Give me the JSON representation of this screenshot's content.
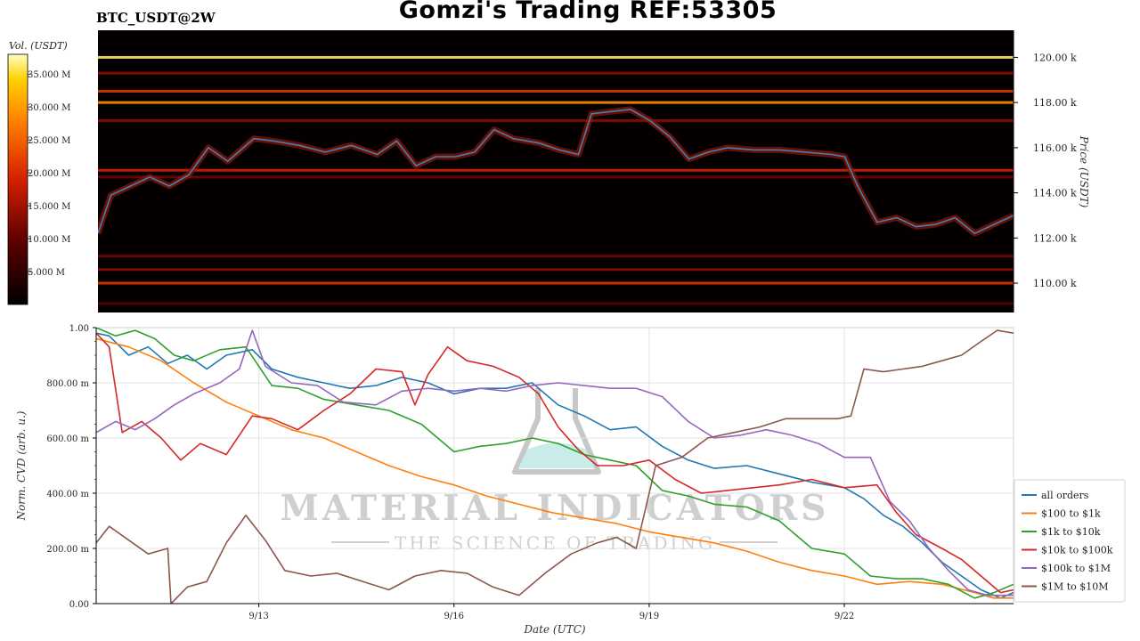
{
  "header": {
    "title": "Gomzi's Trading REF:53305",
    "symbol": "BTC_USDT@2W"
  },
  "colorbar": {
    "label": "Vol. (USDT)",
    "ticks": [
      "35.000 M",
      "30.000 M",
      "25.000 M",
      "20.000 M",
      "15.000 M",
      "10.000 M",
      "5.000 M"
    ],
    "tick_values": [
      35,
      30,
      25,
      20,
      15,
      10,
      5
    ],
    "range": [
      0,
      38
    ]
  },
  "watermark": {
    "brand": "MATERIAL INDICATORS",
    "tagline": "THE SCIENCE OF TRADING"
  },
  "chart_data": [
    {
      "type": "heatmap",
      "ylabel": "Price (USDT)",
      "ylim": [
        108700,
        121200
      ],
      "y_ticks": [
        110000,
        112000,
        114000,
        116000,
        118000,
        120000
      ],
      "y_tick_labels": [
        "110.00 k",
        "112.00 k",
        "114.00 k",
        "116.00 k",
        "118.00 k",
        "120.00 k"
      ],
      "x_range_days": [
        10.5,
        24.6
      ],
      "price_line_color": "#3f7fbf",
      "price_series": {
        "x": [
          10.5,
          10.7,
          11.0,
          11.3,
          11.6,
          11.9,
          12.2,
          12.5,
          12.9,
          13.2,
          13.6,
          14.0,
          14.4,
          14.8,
          15.1,
          15.4,
          15.7,
          16.0,
          16.3,
          16.6,
          16.9,
          17.3,
          17.6,
          17.9,
          18.1,
          18.4,
          18.7,
          19.0,
          19.3,
          19.6,
          19.9,
          20.2,
          20.6,
          21.0,
          21.4,
          21.8,
          22.0,
          22.2,
          22.5,
          22.8,
          23.1,
          23.4,
          23.7,
          24.0,
          24.3,
          24.6
        ],
        "y": [
          112200,
          113900,
          114300,
          114700,
          114300,
          114800,
          116000,
          115400,
          116400,
          116300,
          116100,
          115800,
          116100,
          115700,
          116300,
          115200,
          115600,
          115600,
          115800,
          116800,
          116400,
          116200,
          115900,
          115700,
          117500,
          117600,
          117700,
          117200,
          116500,
          115500,
          115800,
          116000,
          115900,
          115900,
          115800,
          115700,
          115600,
          114300,
          112700,
          112900,
          112500,
          112600,
          112900,
          112200,
          112600,
          113000
        ]
      },
      "liquidity_bands": [
        {
          "price": 120000,
          "intensity": 0.95
        },
        {
          "price": 119300,
          "intensity": 0.35
        },
        {
          "price": 118500,
          "intensity": 0.55
        },
        {
          "price": 118000,
          "intensity": 0.75
        },
        {
          "price": 117200,
          "intensity": 0.35
        },
        {
          "price": 115000,
          "intensity": 0.5
        },
        {
          "price": 114700,
          "intensity": 0.3
        },
        {
          "price": 111200,
          "intensity": 0.3
        },
        {
          "price": 110600,
          "intensity": 0.35
        },
        {
          "price": 110000,
          "intensity": 0.55
        },
        {
          "price": 109100,
          "intensity": 0.25
        }
      ]
    },
    {
      "type": "line",
      "xlabel": "Date (UTC)",
      "ylabel": "Norm. CVD (arb. u.)",
      "ylim": [
        0,
        1
      ],
      "xlim": [
        10.5,
        24.6
      ],
      "x_ticks": [
        13,
        16,
        19,
        22
      ],
      "x_tick_labels": [
        "9/13",
        "9/16",
        "9/19",
        "9/22"
      ],
      "y_ticks": [
        0,
        0.2,
        0.4,
        0.6,
        0.8,
        1.0
      ],
      "y_tick_labels": [
        "0.00",
        "200.00 m",
        "400.00 m",
        "600.00 m",
        "800.00 m",
        "1.00"
      ],
      "legend_position": "lower-right",
      "series": [
        {
          "name": "all orders",
          "color": "#1f77b4",
          "x": [
            10.5,
            10.7,
            11.0,
            11.3,
            11.6,
            11.9,
            12.2,
            12.5,
            12.9,
            13.2,
            13.6,
            14.0,
            14.4,
            14.8,
            15.2,
            15.6,
            16.0,
            16.4,
            16.8,
            17.2,
            17.6,
            18.0,
            18.4,
            18.8,
            19.2,
            19.6,
            20.0,
            20.5,
            21.0,
            21.5,
            22.0,
            22.3,
            22.6,
            22.9,
            23.2,
            23.5,
            23.8,
            24.1,
            24.4,
            24.6
          ],
          "y": [
            0.98,
            0.97,
            0.9,
            0.93,
            0.87,
            0.9,
            0.85,
            0.9,
            0.92,
            0.85,
            0.82,
            0.8,
            0.78,
            0.79,
            0.82,
            0.8,
            0.76,
            0.78,
            0.78,
            0.8,
            0.72,
            0.68,
            0.63,
            0.64,
            0.57,
            0.52,
            0.49,
            0.5,
            0.47,
            0.44,
            0.42,
            0.38,
            0.32,
            0.28,
            0.22,
            0.15,
            0.1,
            0.05,
            0.02,
            0.04
          ]
        },
        {
          "name": "$100 to $1k",
          "color": "#ff7f0e",
          "x": [
            10.5,
            11.0,
            11.5,
            12.0,
            12.5,
            13.0,
            13.5,
            14.0,
            14.5,
            15.0,
            15.5,
            16.0,
            16.5,
            17.0,
            17.5,
            18.0,
            18.5,
            19.0,
            19.5,
            20.0,
            20.5,
            21.0,
            21.5,
            22.0,
            22.5,
            23.0,
            23.5,
            24.0,
            24.3,
            24.6
          ],
          "y": [
            0.96,
            0.93,
            0.88,
            0.8,
            0.73,
            0.68,
            0.63,
            0.6,
            0.55,
            0.5,
            0.46,
            0.43,
            0.39,
            0.36,
            0.33,
            0.31,
            0.29,
            0.26,
            0.24,
            0.22,
            0.19,
            0.15,
            0.12,
            0.1,
            0.07,
            0.08,
            0.07,
            0.04,
            0.02,
            0.02
          ]
        },
        {
          "name": "$1k to $10k",
          "color": "#2ca02c",
          "x": [
            10.5,
            10.8,
            11.1,
            11.4,
            11.7,
            12.0,
            12.4,
            12.8,
            13.2,
            13.6,
            14.0,
            14.5,
            15.0,
            15.5,
            16.0,
            16.4,
            16.8,
            17.2,
            17.6,
            18.0,
            18.4,
            18.8,
            19.2,
            19.6,
            20.0,
            20.5,
            21.0,
            21.5,
            22.0,
            22.4,
            22.8,
            23.2,
            23.6,
            24.0,
            24.3,
            24.6
          ],
          "y": [
            1.0,
            0.97,
            0.99,
            0.96,
            0.9,
            0.88,
            0.92,
            0.93,
            0.79,
            0.78,
            0.74,
            0.72,
            0.7,
            0.65,
            0.55,
            0.57,
            0.58,
            0.6,
            0.58,
            0.54,
            0.52,
            0.5,
            0.41,
            0.39,
            0.36,
            0.35,
            0.3,
            0.2,
            0.18,
            0.1,
            0.09,
            0.09,
            0.07,
            0.02,
            0.04,
            0.07
          ]
        },
        {
          "name": "$10k to $100k",
          "color": "#d62728",
          "x": [
            10.5,
            10.7,
            10.9,
            11.2,
            11.5,
            11.8,
            12.1,
            12.5,
            12.9,
            13.2,
            13.6,
            14.0,
            14.4,
            14.8,
            15.2,
            15.4,
            15.6,
            15.9,
            16.2,
            16.6,
            17.0,
            17.3,
            17.6,
            17.9,
            18.2,
            18.6,
            19.0,
            19.4,
            19.8,
            20.2,
            20.6,
            21.0,
            21.5,
            22.0,
            22.5,
            22.8,
            23.1,
            23.5,
            23.8,
            24.1,
            24.4,
            24.6
          ],
          "y": [
            0.98,
            0.93,
            0.62,
            0.66,
            0.6,
            0.52,
            0.58,
            0.54,
            0.68,
            0.67,
            0.63,
            0.7,
            0.76,
            0.85,
            0.84,
            0.72,
            0.83,
            0.93,
            0.88,
            0.86,
            0.82,
            0.76,
            0.64,
            0.56,
            0.5,
            0.5,
            0.52,
            0.45,
            0.4,
            0.41,
            0.42,
            0.43,
            0.45,
            0.42,
            0.43,
            0.33,
            0.25,
            0.2,
            0.16,
            0.1,
            0.04,
            0.05
          ]
        },
        {
          "name": "$100k to $1M",
          "color": "#9467bd",
          "x": [
            10.5,
            10.8,
            11.1,
            11.4,
            11.7,
            12.0,
            12.4,
            12.7,
            12.9,
            13.1,
            13.5,
            13.9,
            14.3,
            14.8,
            15.2,
            15.6,
            16.0,
            16.4,
            16.8,
            17.2,
            17.6,
            18.0,
            18.4,
            18.8,
            19.2,
            19.6,
            20.0,
            20.4,
            20.8,
            21.2,
            21.6,
            22.0,
            22.4,
            22.7,
            23.0,
            23.3,
            23.6,
            23.9,
            24.2,
            24.6
          ],
          "y": [
            0.62,
            0.66,
            0.63,
            0.67,
            0.72,
            0.76,
            0.8,
            0.85,
            0.99,
            0.86,
            0.8,
            0.79,
            0.73,
            0.72,
            0.77,
            0.78,
            0.77,
            0.78,
            0.77,
            0.79,
            0.8,
            0.79,
            0.78,
            0.78,
            0.75,
            0.66,
            0.6,
            0.61,
            0.63,
            0.61,
            0.58,
            0.53,
            0.53,
            0.37,
            0.3,
            0.2,
            0.12,
            0.05,
            0.03,
            0.03
          ]
        },
        {
          "name": "$1M to $10M",
          "color": "#8c564b",
          "x": [
            10.5,
            10.7,
            11.0,
            11.3,
            11.6,
            11.65,
            11.9,
            12.2,
            12.5,
            12.8,
            13.1,
            13.4,
            13.8,
            14.2,
            14.6,
            15.0,
            15.4,
            15.8,
            16.2,
            16.6,
            17.0,
            17.4,
            17.8,
            18.2,
            18.5,
            18.8,
            19.1,
            19.5,
            19.9,
            20.3,
            20.7,
            21.1,
            21.5,
            21.9,
            22.1,
            22.3,
            22.6,
            22.9,
            23.2,
            23.5,
            23.8,
            24.1,
            24.35,
            24.6
          ],
          "y": [
            0.22,
            0.28,
            0.23,
            0.18,
            0.2,
            0.0,
            0.06,
            0.08,
            0.22,
            0.32,
            0.23,
            0.12,
            0.1,
            0.11,
            0.08,
            0.05,
            0.1,
            0.12,
            0.11,
            0.06,
            0.03,
            0.11,
            0.18,
            0.22,
            0.24,
            0.2,
            0.5,
            0.53,
            0.6,
            0.62,
            0.64,
            0.67,
            0.67,
            0.67,
            0.68,
            0.85,
            0.84,
            0.85,
            0.86,
            0.88,
            0.9,
            0.95,
            0.99,
            0.98
          ]
        }
      ]
    }
  ]
}
